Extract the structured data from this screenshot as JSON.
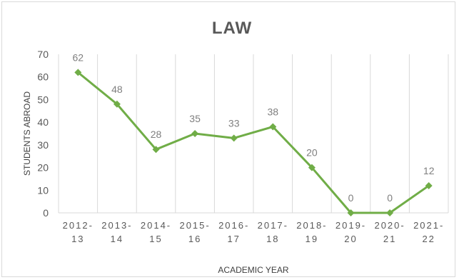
{
  "chart_data": {
    "type": "line",
    "title": "LAW",
    "xlabel": "ACADEMIC YEAR",
    "ylabel": "STUDENTS ABROAD",
    "categories": [
      [
        "2012-",
        "13"
      ],
      [
        "2013-",
        "14"
      ],
      [
        "2014-",
        "15"
      ],
      [
        "2015-",
        "16"
      ],
      [
        "2016-",
        "17"
      ],
      [
        "2017-",
        "18"
      ],
      [
        "2018-",
        "19"
      ],
      [
        "2019-",
        "20"
      ],
      [
        "2020-",
        "21"
      ],
      [
        "2021-",
        "22"
      ]
    ],
    "series": [
      {
        "values": [
          62,
          48,
          28,
          35,
          33,
          38,
          20,
          0,
          0,
          12
        ]
      }
    ],
    "ylim": [
      0,
      70
    ],
    "yticks": [
      0,
      10,
      20,
      30,
      40,
      50,
      60,
      70
    ],
    "grid": "vertical",
    "legend": "none",
    "line_color": "#70ad47",
    "grid_color": "#d9d9d9"
  }
}
